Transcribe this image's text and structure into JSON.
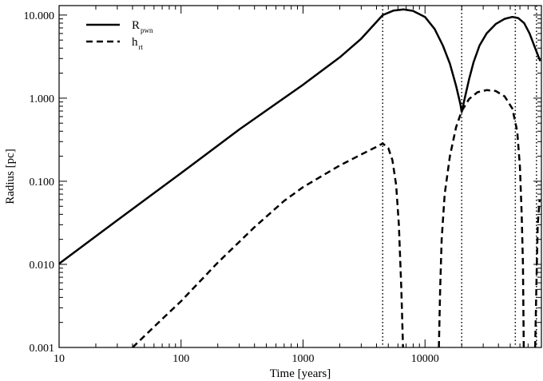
{
  "chart_data": {
    "type": "line",
    "xlabel": "Time [years]",
    "ylabel": "Radius [pc]",
    "x_scale": "log",
    "y_scale": "log",
    "xlim": [
      10,
      90000
    ],
    "ylim": [
      0.001,
      13
    ],
    "x_ticks": [
      {
        "value": 10,
        "label": "10"
      },
      {
        "value": 100,
        "label": "100"
      },
      {
        "value": 1000,
        "label": "1000"
      },
      {
        "value": 10000,
        "label": "10000"
      }
    ],
    "y_ticks": [
      {
        "value": 0.001,
        "label": "0.001"
      },
      {
        "value": 0.01,
        "label": "0.010"
      },
      {
        "value": 0.1,
        "label": "0.100"
      },
      {
        "value": 1,
        "label": "1.000"
      },
      {
        "value": 10,
        "label": "10.000"
      }
    ],
    "vertical_lines": [
      4500,
      20000,
      55000,
      82000
    ],
    "legend": {
      "position": "top-left"
    },
    "series": [
      {
        "name": "R",
        "name_sub": "pwn",
        "style": "solid",
        "color": "#000000",
        "points": [
          [
            10,
            0.0102
          ],
          [
            30,
            0.034
          ],
          [
            100,
            0.125
          ],
          [
            300,
            0.42
          ],
          [
            1000,
            1.45
          ],
          [
            2000,
            3.1
          ],
          [
            3000,
            5.2
          ],
          [
            4500,
            10.0
          ],
          [
            5500,
            11.3
          ],
          [
            6700,
            11.7
          ],
          [
            8000,
            11.2
          ],
          [
            10000,
            9.5
          ],
          [
            12000,
            6.8
          ],
          [
            14000,
            4.3
          ],
          [
            16000,
            2.6
          ],
          [
            18000,
            1.4
          ],
          [
            19500,
            0.85
          ],
          [
            20000,
            0.68
          ],
          [
            21000,
            0.95
          ],
          [
            23000,
            1.7
          ],
          [
            25000,
            2.7
          ],
          [
            28000,
            4.3
          ],
          [
            32000,
            6.0
          ],
          [
            38000,
            7.8
          ],
          [
            45000,
            9.0
          ],
          [
            52000,
            9.5
          ],
          [
            58000,
            9.2
          ],
          [
            65000,
            8.0
          ],
          [
            72000,
            6.0
          ],
          [
            80000,
            4.0
          ],
          [
            88000,
            2.8
          ]
        ]
      },
      {
        "name": "h",
        "name_sub": "rt",
        "style": "dashed",
        "color": "#000000",
        "points": [
          [
            40,
            0.001
          ],
          [
            70,
            0.0022
          ],
          [
            100,
            0.0036
          ],
          [
            200,
            0.0105
          ],
          [
            400,
            0.028
          ],
          [
            700,
            0.058
          ],
          [
            1000,
            0.085
          ],
          [
            2000,
            0.155
          ],
          [
            3000,
            0.21
          ],
          [
            4000,
            0.26
          ],
          [
            4500,
            0.285
          ],
          [
            5000,
            0.25
          ],
          [
            5400,
            0.18
          ],
          [
            5800,
            0.09
          ],
          [
            6100,
            0.03
          ],
          [
            6400,
            0.005
          ],
          [
            6600,
            0.001
          ],
          null,
          [
            13000,
            0.001
          ],
          [
            13300,
            0.005
          ],
          [
            13700,
            0.02
          ],
          [
            14500,
            0.07
          ],
          [
            16000,
            0.2
          ],
          [
            18000,
            0.45
          ],
          [
            20000,
            0.7
          ],
          [
            23000,
            0.98
          ],
          [
            27000,
            1.18
          ],
          [
            32000,
            1.25
          ],
          [
            38000,
            1.22
          ],
          [
            45000,
            1.05
          ],
          [
            52000,
            0.75
          ],
          [
            57000,
            0.4
          ],
          [
            60000,
            0.15
          ],
          [
            62000,
            0.04
          ],
          [
            63500,
            0.01
          ],
          [
            64500,
            0.001
          ],
          null,
          [
            80000,
            0.001
          ],
          [
            82000,
            0.006
          ],
          [
            84000,
            0.03
          ],
          [
            87000,
            0.06
          ]
        ]
      }
    ]
  }
}
